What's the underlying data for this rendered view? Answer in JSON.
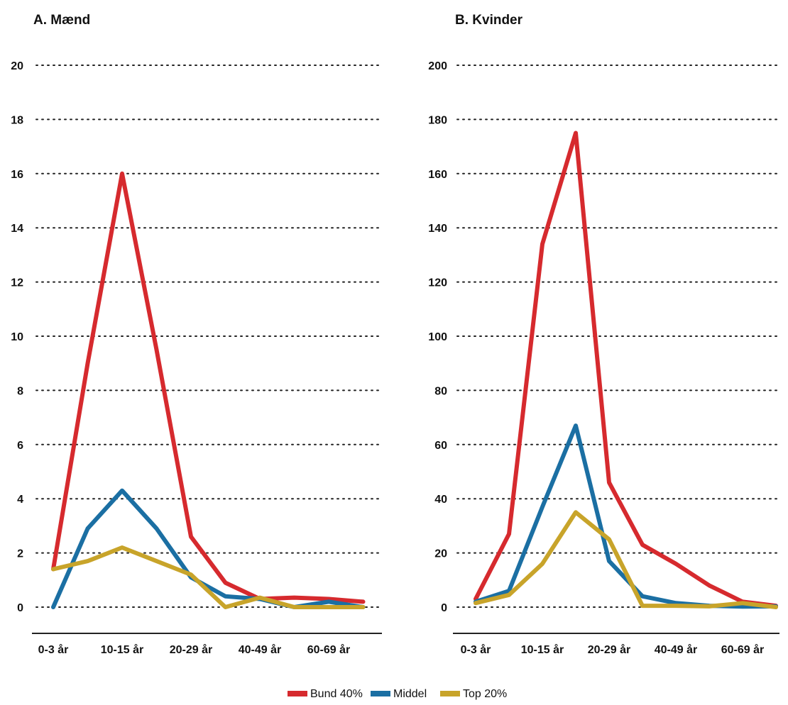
{
  "chart_data": [
    {
      "type": "line",
      "title": "A. Mænd",
      "categories": [
        "0-3 år",
        "",
        "10-15 år",
        "",
        "20-29 år",
        "",
        "40-49 år",
        "",
        "60-69 år",
        ""
      ],
      "xtick_labels": [
        "0-3 år",
        "10-15 år",
        "20-29 år",
        "40-49 år",
        "60-69 år"
      ],
      "ylim": [
        0,
        20
      ],
      "yticks": [
        0,
        2,
        4,
        6,
        8,
        10,
        12,
        14,
        16,
        18,
        20
      ],
      "grid": true,
      "series": [
        {
          "name": "Bund 40%",
          "color": "#d62a2e",
          "values": [
            1.4,
            9.0,
            16.0,
            9.5,
            2.6,
            0.9,
            0.3,
            0.35,
            0.3,
            0.2
          ]
        },
        {
          "name": "Middel",
          "color": "#1b6fa3",
          "values": [
            0.0,
            2.9,
            4.3,
            2.9,
            1.1,
            0.4,
            0.3,
            0.0,
            0.2,
            0.0
          ]
        },
        {
          "name": "Top 20%",
          "color": "#c8a42a",
          "values": [
            1.4,
            1.7,
            2.2,
            1.7,
            1.2,
            0.0,
            0.35,
            0.0,
            0.0,
            0.0
          ]
        }
      ]
    },
    {
      "type": "line",
      "title": "B. Kvinder",
      "categories": [
        "0-3 år",
        "",
        "10-15 år",
        "",
        "20-29 år",
        "",
        "40-49 år",
        "",
        "60-69 år",
        ""
      ],
      "xtick_labels": [
        "0-3 år",
        "10-15 år",
        "20-29 år",
        "40-49 år",
        "60-69 år"
      ],
      "ylim": [
        0,
        200
      ],
      "yticks": [
        0,
        20,
        40,
        60,
        80,
        100,
        120,
        140,
        160,
        180,
        200
      ],
      "grid": true,
      "series": [
        {
          "name": "Bund 40%",
          "color": "#d62a2e",
          "values": [
            3,
            27,
            134,
            175,
            46,
            23,
            16,
            8,
            2,
            0.5
          ]
        },
        {
          "name": "Middel",
          "color": "#1b6fa3",
          "values": [
            2,
            6,
            37,
            67,
            17,
            4,
            1.5,
            0.5,
            0.2,
            0.3
          ]
        },
        {
          "name": "Top 20%",
          "color": "#c8a42a",
          "values": [
            1.5,
            4.5,
            16,
            35,
            25,
            0.5,
            0.5,
            0.3,
            1.5,
            0
          ]
        }
      ]
    }
  ],
  "legend": {
    "placement": "bottom-center",
    "items": [
      {
        "label": "Bund 40%",
        "color": "#d62a2e"
      },
      {
        "label": "Middel",
        "color": "#1b6fa3"
      },
      {
        "label": "Top 20%",
        "color": "#c8a42a"
      }
    ]
  }
}
